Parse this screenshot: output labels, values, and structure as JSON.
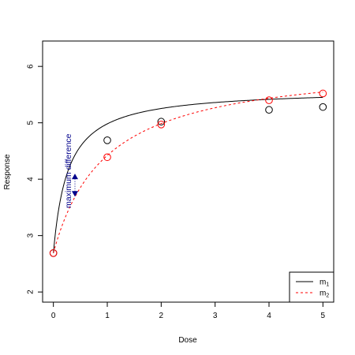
{
  "chart_data": {
    "type": "line",
    "xlabel": "Dose",
    "ylabel": "Response",
    "xlim": [
      -0.2,
      5.2
    ],
    "ylim": [
      1.82,
      6.45
    ],
    "xticks": [
      0,
      1,
      2,
      3,
      4,
      5
    ],
    "yticks": [
      2,
      3,
      4,
      5,
      6
    ],
    "grid": false,
    "legend_position": "bottom-right",
    "annotation": {
      "text": "maximum difference",
      "color": "#00008B",
      "x": 0.4,
      "y_top": 4.05,
      "y_bottom": 3.74
    },
    "series": [
      {
        "legend_base": "m",
        "legend_sub": "1",
        "color": "#000000",
        "linestyle": "solid",
        "observed": {
          "x": [
            0,
            1,
            2,
            4,
            5
          ],
          "y": [
            2.69,
            4.69,
            5.02,
            5.23,
            5.28
          ]
        },
        "curve": {
          "e0": 2.69,
          "emax": 2.91,
          "ed50": 0.27
        }
      },
      {
        "legend_base": "m",
        "legend_sub": "2",
        "color": "#FF0000",
        "linestyle": "dashed",
        "observed": {
          "x": [
            0,
            1,
            2,
            4,
            5
          ],
          "y": [
            2.69,
            4.39,
            4.97,
            5.4,
            5.52
          ]
        },
        "curve": {
          "e0": 2.69,
          "emax": 3.41,
          "ed50": 0.97
        }
      }
    ]
  }
}
